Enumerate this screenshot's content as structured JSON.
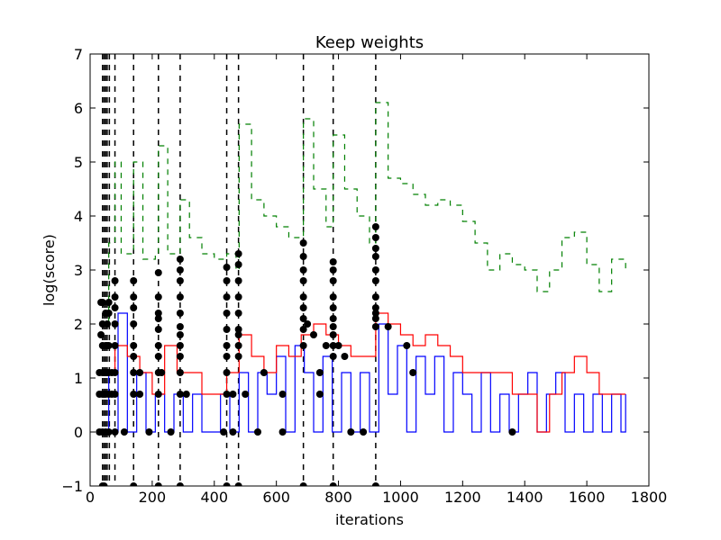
{
  "chart_data": {
    "type": "line",
    "title": "Keep weights",
    "xlabel": "iterations",
    "ylabel": "log(score)",
    "xlim": [
      0,
      1800
    ],
    "ylim": [
      -1,
      7
    ],
    "xticks": [
      0,
      200,
      400,
      600,
      800,
      1000,
      1200,
      1400,
      1600,
      1800
    ],
    "yticks": [
      -1,
      0,
      1,
      2,
      3,
      4,
      5,
      6,
      7
    ],
    "grid": false,
    "legend": "none",
    "colors": {
      "blue": "#0000ff",
      "red": "#ff0000",
      "green": "#008000",
      "marker": "#000000",
      "vline": "#000000"
    },
    "restart_lines_x": [
      40,
      45,
      50,
      55,
      62,
      80,
      140,
      220,
      290,
      440,
      478,
      687,
      783,
      920
    ],
    "series": [
      {
        "style": "blue-solid",
        "x": [
          30,
          60,
          90,
          120,
          150,
          180,
          210,
          240,
          270,
          300,
          330,
          360,
          390,
          420,
          450,
          480,
          510,
          540,
          570,
          600,
          630,
          660,
          690,
          720,
          750,
          780,
          810,
          840,
          870,
          900,
          930,
          960,
          990,
          1020,
          1050,
          1080,
          1110,
          1140,
          1170,
          1200,
          1230,
          1260,
          1290,
          1320,
          1350,
          1380,
          1410,
          1440,
          1470,
          1500,
          1530,
          1560,
          1590,
          1620,
          1650,
          1680,
          1710,
          1725
        ],
        "y": [
          1.1,
          0.0,
          2.2,
          0.0,
          1.1,
          0.0,
          0.7,
          0.0,
          0.7,
          0.0,
          0.7,
          0.0,
          0.0,
          0.7,
          0.0,
          1.1,
          0.0,
          1.1,
          0.7,
          1.4,
          0.0,
          1.6,
          1.1,
          0.0,
          1.4,
          0.0,
          1.1,
          0.0,
          1.1,
          0.0,
          2.0,
          0.7,
          1.6,
          0.0,
          1.4,
          0.7,
          1.4,
          0.0,
          1.1,
          0.7,
          0.0,
          1.1,
          0.0,
          0.7,
          0.0,
          0.7,
          1.1,
          0.0,
          0.7,
          1.1,
          0.0,
          0.7,
          0.0,
          0.7,
          0.0,
          0.7,
          0.0,
          0.7
        ]
      },
      {
        "style": "red-solid",
        "x": [
          40,
          80,
          120,
          160,
          200,
          240,
          280,
          320,
          360,
          400,
          440,
          480,
          520,
          560,
          600,
          640,
          680,
          720,
          760,
          800,
          840,
          880,
          920,
          960,
          1000,
          1040,
          1080,
          1120,
          1160,
          1200,
          1240,
          1280,
          1320,
          1360,
          1400,
          1440,
          1480,
          1520,
          1560,
          1600,
          1640,
          1680,
          1725
        ],
        "y": [
          1.1,
          1.6,
          1.4,
          1.1,
          0.7,
          1.6,
          1.1,
          1.1,
          0.7,
          0.7,
          1.1,
          1.8,
          1.4,
          1.1,
          1.6,
          1.4,
          1.8,
          2.0,
          1.8,
          1.6,
          1.4,
          1.4,
          2.2,
          2.0,
          1.8,
          1.6,
          1.8,
          1.6,
          1.4,
          1.1,
          1.1,
          1.1,
          1.1,
          0.7,
          0.7,
          0.0,
          0.7,
          1.1,
          1.4,
          1.1,
          0.7,
          0.7,
          0.7
        ]
      },
      {
        "style": "green-dashed",
        "x": [
          30,
          60,
          80,
          100,
          140,
          170,
          210,
          220,
          250,
          290,
          320,
          360,
          400,
          440,
          470,
          480,
          520,
          560,
          600,
          640,
          687,
          720,
          760,
          783,
          820,
          860,
          900,
          920,
          960,
          1000,
          1040,
          1080,
          1120,
          1160,
          1200,
          1240,
          1280,
          1320,
          1360,
          1400,
          1440,
          1480,
          1520,
          1560,
          1600,
          1640,
          1680,
          1725
        ],
        "y": [
          2.0,
          3.5,
          5.0,
          3.3,
          5.0,
          3.2,
          3.3,
          5.3,
          3.3,
          4.3,
          3.6,
          3.3,
          3.2,
          3.3,
          3.0,
          5.7,
          4.3,
          4.0,
          3.8,
          3.6,
          5.8,
          4.5,
          3.8,
          5.5,
          4.5,
          4.0,
          3.5,
          6.1,
          4.7,
          4.6,
          4.4,
          4.2,
          4.3,
          4.2,
          3.9,
          3.5,
          3.0,
          3.3,
          3.1,
          3.0,
          2.6,
          3.0,
          3.6,
          3.7,
          3.1,
          2.6,
          3.2,
          3.0
        ]
      }
    ],
    "black_dots": [
      {
        "x": 40,
        "y": [
          2.4,
          2.0,
          1.6,
          1.1,
          0.7,
          0.0,
          -1.0
        ]
      },
      {
        "x": 50,
        "y": [
          2.2,
          1.6,
          1.1,
          0.7,
          0.0
        ]
      },
      {
        "x": 60,
        "y": [
          2.4,
          2.2,
          1.6,
          1.1,
          0.7,
          0.0
        ]
      },
      {
        "x": 80,
        "y": [
          2.8,
          2.5,
          2.3,
          2.0,
          1.6,
          1.1,
          0.7,
          0.0
        ]
      },
      {
        "x": 140,
        "y": [
          2.8,
          2.5,
          2.3,
          2.0,
          1.6,
          1.4,
          1.1,
          0.7,
          -1.0
        ]
      },
      {
        "x": 220,
        "y": [
          2.95,
          2.5,
          2.2,
          2.1,
          1.9,
          1.6,
          1.4,
          1.1,
          0.7,
          -1.0
        ]
      },
      {
        "x": 290,
        "y": [
          3.2,
          3.0,
          2.8,
          2.5,
          2.2,
          1.95,
          1.8,
          1.6,
          1.4,
          1.1,
          0.7,
          -1.0
        ]
      },
      {
        "x": 440,
        "y": [
          3.05,
          2.8,
          2.5,
          2.2,
          1.9,
          1.6,
          1.4,
          1.1,
          0.7,
          -1.0
        ]
      },
      {
        "x": 478,
        "y": [
          3.3,
          3.1,
          2.8,
          2.5,
          2.2,
          1.9,
          1.8,
          1.6,
          1.4,
          -1.0
        ]
      },
      {
        "x": 687,
        "y": [
          3.5,
          3.25,
          3.0,
          2.8,
          2.5,
          2.3,
          2.1,
          1.9,
          1.6,
          -1.0
        ]
      },
      {
        "x": 783,
        "y": [
          3.15,
          3.0,
          2.8,
          2.5,
          2.3,
          2.1,
          1.95,
          1.8,
          1.6,
          1.4,
          -1.0
        ]
      },
      {
        "x": 920,
        "y": [
          3.8,
          3.6,
          3.4,
          3.25,
          3.0,
          2.8,
          2.5,
          2.3,
          2.2,
          2.1,
          1.95,
          -1.0
        ]
      },
      {
        "x": 30,
        "y": [
          0.0,
          0.7,
          1.1
        ]
      },
      {
        "x": 35,
        "y": [
          1.8,
          2.4
        ]
      },
      {
        "x": 45,
        "y": [
          -1.0,
          0.7,
          1.1
        ]
      },
      {
        "x": 55,
        "y": [
          1.1,
          1.6,
          2.0
        ]
      },
      {
        "x": 70,
        "y": [
          0.7,
          1.1
        ]
      },
      {
        "x": 110,
        "y": [
          0.0
        ]
      },
      {
        "x": 160,
        "y": [
          1.1,
          0.7
        ]
      },
      {
        "x": 190,
        "y": [
          0.0
        ]
      },
      {
        "x": 230,
        "y": [
          1.1
        ]
      },
      {
        "x": 260,
        "y": [
          0.0
        ]
      },
      {
        "x": 310,
        "y": [
          0.7
        ]
      },
      {
        "x": 430,
        "y": [
          0.0
        ]
      },
      {
        "x": 460,
        "y": [
          0.7,
          0.0
        ]
      },
      {
        "x": 500,
        "y": [
          0.7
        ]
      },
      {
        "x": 540,
        "y": [
          0.0
        ]
      },
      {
        "x": 560,
        "y": [
          1.1
        ]
      },
      {
        "x": 620,
        "y": [
          0.7,
          0.0
        ]
      },
      {
        "x": 700,
        "y": [
          2.0
        ]
      },
      {
        "x": 720,
        "y": [
          1.8
        ]
      },
      {
        "x": 740,
        "y": [
          1.1,
          0.7
        ]
      },
      {
        "x": 760,
        "y": [
          1.6
        ]
      },
      {
        "x": 800,
        "y": [
          1.6
        ]
      },
      {
        "x": 820,
        "y": [
          1.4
        ]
      },
      {
        "x": 840,
        "y": [
          0.0
        ]
      },
      {
        "x": 880,
        "y": [
          0.0
        ]
      },
      {
        "x": 960,
        "y": [
          1.95
        ]
      },
      {
        "x": 1020,
        "y": [
          1.6
        ]
      },
      {
        "x": 1040,
        "y": [
          1.1
        ]
      },
      {
        "x": 1360,
        "y": [
          0.0
        ]
      }
    ]
  }
}
